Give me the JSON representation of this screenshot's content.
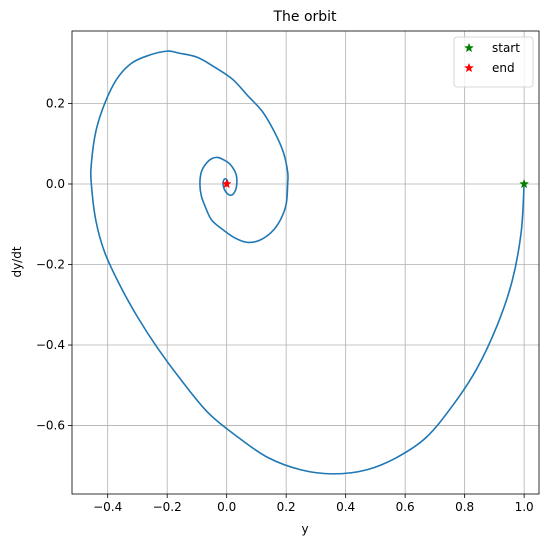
{
  "chart_data": {
    "type": "line",
    "title": "The orbit",
    "xlabel": "y",
    "ylabel": "dy/dt",
    "xlim": [
      -0.52,
      1.05
    ],
    "ylim": [
      -0.77,
      0.38
    ],
    "grid": true,
    "legend_placement": "upper-right",
    "x_ticks": [
      {
        "value": -0.4,
        "label": "−0.4"
      },
      {
        "value": -0.2,
        "label": "−0.2"
      },
      {
        "value": 0.0,
        "label": "0.0"
      },
      {
        "value": 0.2,
        "label": "0.2"
      },
      {
        "value": 0.4,
        "label": "0.4"
      },
      {
        "value": 0.6,
        "label": "0.6"
      },
      {
        "value": 0.8,
        "label": "0.8"
      },
      {
        "value": 1.0,
        "label": "1.0"
      }
    ],
    "y_ticks": [
      {
        "value": -0.6,
        "label": "−0.6"
      },
      {
        "value": -0.4,
        "label": "−0.4"
      },
      {
        "value": -0.2,
        "label": "−0.2"
      },
      {
        "value": 0.0,
        "label": "0.0"
      },
      {
        "value": 0.2,
        "label": "0.2"
      }
    ],
    "orbit": {
      "color": "#1f77b4",
      "points": [
        [
          1.0,
          0.0
        ],
        [
          0.99,
          -0.12
        ],
        [
          0.96,
          -0.24
        ],
        [
          0.91,
          -0.35
        ],
        [
          0.84,
          -0.46
        ],
        [
          0.76,
          -0.55
        ],
        [
          0.67,
          -0.63
        ],
        [
          0.57,
          -0.68
        ],
        [
          0.47,
          -0.71
        ],
        [
          0.36,
          -0.72
        ],
        [
          0.25,
          -0.71
        ],
        [
          0.14,
          -0.68
        ],
        [
          0.04,
          -0.63
        ],
        [
          -0.06,
          -0.57
        ],
        [
          -0.15,
          -0.49
        ],
        [
          -0.23,
          -0.41
        ],
        [
          -0.3,
          -0.33
        ],
        [
          -0.36,
          -0.25
        ],
        [
          -0.41,
          -0.17
        ],
        [
          -0.44,
          -0.09
        ],
        [
          -0.455,
          0.0
        ],
        [
          -0.455,
          0.05
        ],
        [
          -0.44,
          0.13
        ],
        [
          -0.41,
          0.2
        ],
        [
          -0.37,
          0.26
        ],
        [
          -0.32,
          0.3
        ],
        [
          -0.26,
          0.32
        ],
        [
          -0.2,
          0.33
        ],
        [
          -0.16,
          0.325
        ],
        [
          -0.1,
          0.315
        ],
        [
          -0.04,
          0.29
        ],
        [
          0.02,
          0.26
        ],
        [
          0.07,
          0.22
        ],
        [
          0.12,
          0.18
        ],
        [
          0.16,
          0.13
        ],
        [
          0.19,
          0.08
        ],
        [
          0.205,
          0.03
        ],
        [
          0.205,
          0.0
        ],
        [
          0.2,
          -0.05
        ],
        [
          0.18,
          -0.09
        ],
        [
          0.15,
          -0.12
        ],
        [
          0.11,
          -0.14
        ],
        [
          0.07,
          -0.145
        ],
        [
          0.03,
          -0.135
        ],
        [
          -0.01,
          -0.115
        ],
        [
          -0.05,
          -0.09
        ],
        [
          -0.07,
          -0.06
        ],
        [
          -0.085,
          -0.03
        ],
        [
          -0.09,
          0.0
        ],
        [
          -0.085,
          0.03
        ],
        [
          -0.07,
          0.05
        ],
        [
          -0.05,
          0.063
        ],
        [
          -0.03,
          0.066
        ],
        [
          -0.01,
          0.06
        ],
        [
          0.01,
          0.05
        ],
        [
          0.025,
          0.035
        ],
        [
          0.033,
          0.02
        ],
        [
          0.034,
          0.0
        ],
        [
          0.03,
          -0.015
        ],
        [
          0.022,
          -0.025
        ],
        [
          0.012,
          -0.028
        ],
        [
          0.002,
          -0.024
        ],
        [
          -0.006,
          -0.016
        ],
        [
          -0.011,
          -0.006
        ],
        [
          -0.012,
          0.004
        ],
        [
          -0.009,
          0.011
        ],
        [
          -0.004,
          0.013
        ],
        [
          0.001,
          0.01
        ],
        [
          0.004,
          0.005
        ],
        [
          0.003,
          0.0
        ],
        [
          0.0,
          0.0
        ]
      ]
    },
    "markers": [
      {
        "name": "start",
        "x": 1.0,
        "y": 0.0,
        "color": "#008000",
        "symbol": "star"
      },
      {
        "name": "end",
        "x": 0.0,
        "y": 0.0,
        "color": "#ff0000",
        "symbol": "star"
      }
    ]
  }
}
